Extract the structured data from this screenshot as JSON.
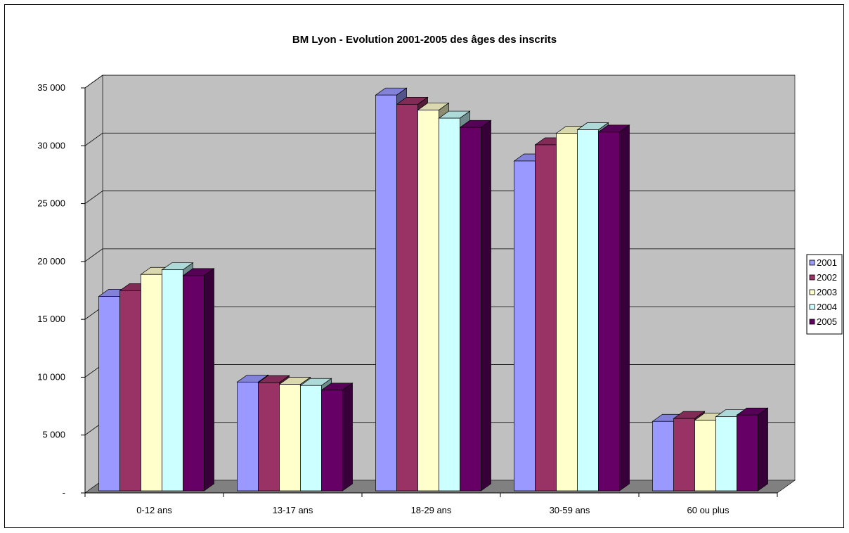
{
  "chart_data": {
    "type": "bar",
    "title": "BM Lyon - Evolution 2001-2005 des âges des inscrits",
    "xlabel": "",
    "ylabel": "",
    "categories": [
      "0-12 ans",
      "13-17 ans",
      "18-29 ans",
      "30-59 ans",
      "60 ou plus"
    ],
    "series": [
      {
        "name": "2001",
        "color": "#9999ff",
        "values": [
          16800,
          9400,
          34200,
          28500,
          6000
        ]
      },
      {
        "name": "2002",
        "color": "#993366",
        "values": [
          17300,
          9350,
          33400,
          29900,
          6250
        ]
      },
      {
        "name": "2003",
        "color": "#ffffcc",
        "values": [
          18700,
          9200,
          32900,
          30900,
          6100
        ]
      },
      {
        "name": "2004",
        "color": "#ccffff",
        "values": [
          19100,
          9100,
          32200,
          31200,
          6400
        ]
      },
      {
        "name": "2005",
        "color": "#660066",
        "values": [
          18600,
          8700,
          31400,
          31000,
          6550
        ]
      }
    ],
    "yticks": [
      0,
      5000,
      10000,
      15000,
      20000,
      25000,
      30000,
      35000
    ],
    "ytick_labels": [
      "-",
      "5 000",
      "10 000",
      "15 000",
      "20 000",
      "25 000",
      "30 000",
      "35 000"
    ],
    "ylim": [
      0,
      35000
    ],
    "grid": true,
    "legend": "right",
    "three_d": true,
    "wall_color": "#c0c0c0",
    "floor_color": "#808080"
  }
}
